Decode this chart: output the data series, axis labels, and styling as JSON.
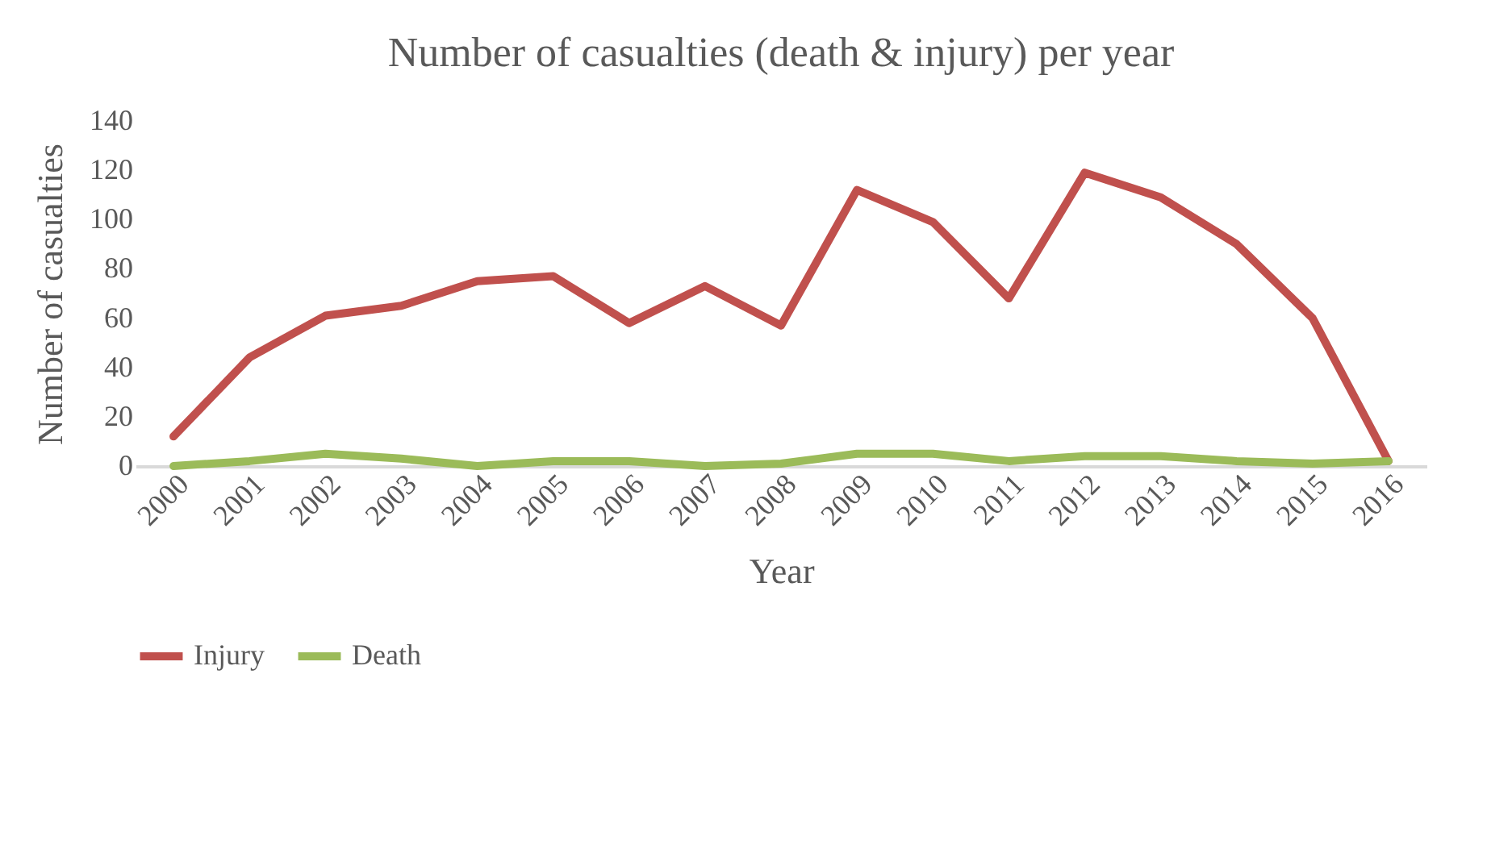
{
  "chart_data": {
    "type": "line",
    "title": "Number of casualties (death & injury) per year",
    "xlabel": "Year",
    "ylabel": "Number of casualties",
    "categories": [
      "2000",
      "2001",
      "2002",
      "2003",
      "2004",
      "2005",
      "2006",
      "2007",
      "2008",
      "2009",
      "2010",
      "2011",
      "2012",
      "2013",
      "2014",
      "2015",
      "2016"
    ],
    "series": [
      {
        "name": "Injury",
        "color": "#c0504d",
        "values": [
          12,
          44,
          61,
          65,
          75,
          77,
          58,
          73,
          57,
          112,
          99,
          68,
          119,
          109,
          90,
          60,
          2
        ]
      },
      {
        "name": "Death",
        "color": "#9bbb59",
        "values": [
          0,
          2,
          5,
          3,
          0,
          2,
          2,
          0,
          1,
          5,
          5,
          2,
          4,
          4,
          2,
          1,
          2
        ]
      }
    ],
    "ylim": [
      0,
      140
    ],
    "yticks": [
      0,
      20,
      40,
      60,
      80,
      100,
      120,
      140
    ],
    "grid": false,
    "legend": "bottom",
    "marker": "none",
    "line_style": "solid"
  }
}
